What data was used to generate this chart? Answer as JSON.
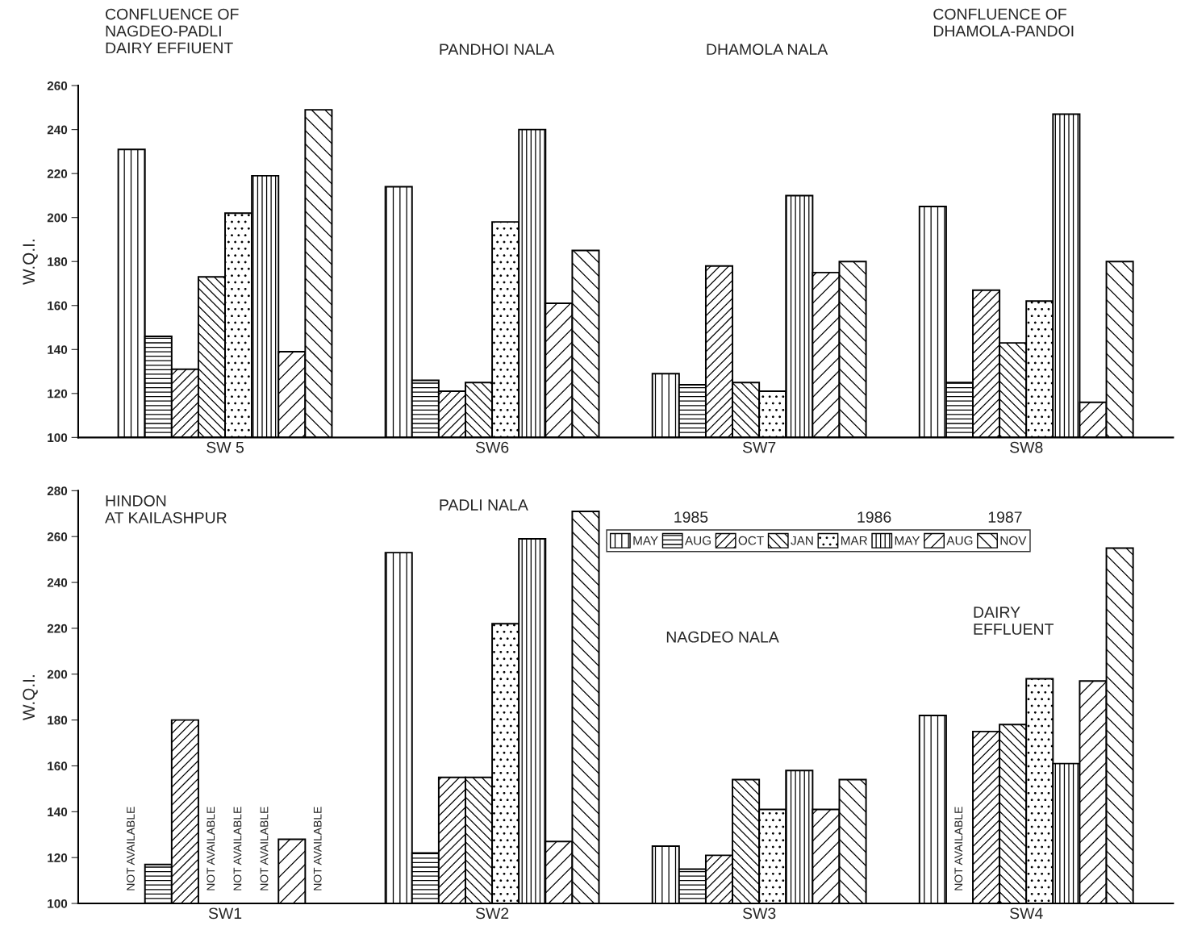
{
  "chart_data": [
    {
      "type": "bar",
      "categories": [
        "SW 5",
        "SW6",
        "SW7",
        "SW8"
      ],
      "ylabel": "W.Q.I.",
      "ylim": [
        100,
        260
      ],
      "yticks": [
        100,
        120,
        140,
        160,
        180,
        200,
        220,
        240,
        260
      ],
      "legend": false,
      "grid": false,
      "annotations": [
        "CONFLUENCE OF\nNAGDEO-PADLI\nDAIRY EFFIUENT",
        "PANDHOI NALA",
        "DHAMOLA NALA",
        "CONFLUENCE OF\nDHAMOLA-PANDOI"
      ],
      "series": [
        {
          "values": [
            231,
            214,
            129,
            205
          ]
        },
        {
          "values": [
            146,
            126,
            124,
            125
          ]
        },
        {
          "values": [
            131,
            121,
            178,
            167
          ]
        },
        {
          "values": [
            173,
            125,
            125,
            143
          ]
        },
        {
          "values": [
            202,
            198,
            121,
            162
          ]
        },
        {
          "values": [
            219,
            240,
            210,
            247
          ]
        },
        {
          "values": [
            139,
            161,
            175,
            116
          ]
        },
        {
          "values": [
            249,
            185,
            180,
            180
          ]
        }
      ]
    },
    {
      "type": "bar",
      "categories": [
        "SW1",
        "SW2",
        "SW3",
        "SW4"
      ],
      "ylabel": "W.Q.I.",
      "ylim": [
        100,
        280
      ],
      "yticks": [
        100,
        120,
        140,
        160,
        180,
        200,
        220,
        240,
        260,
        280
      ],
      "legend": "top right",
      "grid": false,
      "annotations": [
        "HINDON\nAT KAILASHPUR",
        "PADLI NALA",
        "NAGDEO NALA",
        "DAIRY\nEFFLUENT",
        "1985",
        "1986",
        "1987"
      ],
      "series": [
        {
          "name": "MAY",
          "values": [
            null,
            253,
            125,
            182
          ],
          "value_labels": [
            "NOT AVAILABLE",
            null,
            null,
            null
          ]
        },
        {
          "name": "AUG",
          "values": [
            117,
            122,
            115,
            null
          ],
          "value_labels": [
            null,
            null,
            null,
            "NOT AVAILABLE"
          ]
        },
        {
          "name": "OCT",
          "values": [
            180,
            155,
            121,
            175
          ]
        },
        {
          "name": "JAN",
          "values": [
            null,
            155,
            154,
            178
          ],
          "value_labels": [
            "NOT AVAILABLE",
            null,
            null,
            null
          ]
        },
        {
          "name": "MAR",
          "values": [
            null,
            222,
            141,
            198
          ],
          "value_labels": [
            "NOT AVAILABLE",
            null,
            null,
            null
          ]
        },
        {
          "name": "MAY",
          "values": [
            null,
            259,
            158,
            161
          ],
          "value_labels": [
            "NOT AVAILABLE",
            null,
            null,
            null
          ]
        },
        {
          "name": "AUG",
          "values": [
            128,
            127,
            141,
            197
          ]
        },
        {
          "name": "NOV",
          "values": [
            null,
            271,
            154,
            255
          ],
          "value_labels": [
            "NOT AVAILABLE",
            null,
            null,
            null
          ]
        }
      ]
    }
  ]
}
